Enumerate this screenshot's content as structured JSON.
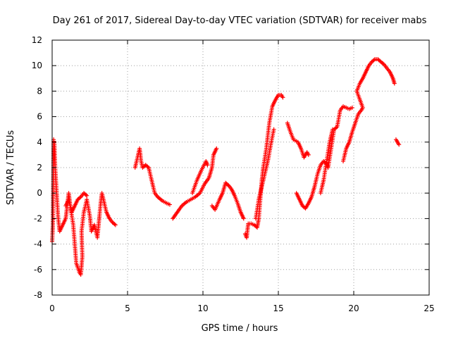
{
  "chart_data": {
    "type": "scatter",
    "title": "Day 261 of 2017, Sidereal Day-to-day VTEC variation (SDTVAR) for receiver mabs",
    "xlabel": "GPS time / hours",
    "ylabel": "SDTVAR / TECUs",
    "xlim": [
      0,
      25
    ],
    "ylim": [
      -8,
      12
    ],
    "xticks": [
      0,
      5,
      10,
      15,
      20,
      25
    ],
    "yticks": [
      -8,
      -6,
      -4,
      -2,
      0,
      2,
      4,
      6,
      8,
      10,
      12
    ],
    "x_tick_labels": [
      "0",
      "5",
      "10",
      "15",
      "20",
      "25"
    ],
    "y_tick_labels": [
      "-8",
      "-6",
      "-4",
      "-2",
      "0",
      "2",
      "4",
      "6",
      "8",
      "10",
      "12"
    ],
    "grid": true,
    "marker": "+",
    "series": [
      {
        "name": "SDTVAR",
        "color": "#ff0000",
        "segments": [
          [
            [
              0.0,
              -3.8
            ],
            [
              0.05,
              -2.5
            ],
            [
              0.1,
              4.2
            ],
            [
              0.15,
              3.8
            ],
            [
              0.2,
              2.0
            ],
            [
              0.3,
              0.0
            ],
            [
              0.4,
              -2.0
            ],
            [
              0.5,
              -3.0
            ],
            [
              0.7,
              -2.5
            ],
            [
              0.9,
              -2.0
            ],
            [
              1.0,
              -1.0
            ],
            [
              1.1,
              0.0
            ],
            [
              1.2,
              -1.0
            ],
            [
              1.4,
              -2.5
            ],
            [
              1.5,
              -4.0
            ],
            [
              1.6,
              -5.5
            ],
            [
              1.8,
              -6.2
            ],
            [
              1.9,
              -6.4
            ],
            [
              2.0,
              -5.0
            ],
            [
              1.95,
              -3.0
            ],
            [
              2.1,
              -1.5
            ],
            [
              2.3,
              -0.5
            ],
            [
              2.5,
              -1.8
            ],
            [
              2.6,
              -3.0
            ],
            [
              2.8,
              -2.5
            ],
            [
              3.0,
              -3.5
            ],
            [
              3.2,
              -1.0
            ],
            [
              3.3,
              0.0
            ],
            [
              3.4,
              -0.5
            ],
            [
              3.6,
              -1.5
            ],
            [
              3.8,
              -2.0
            ],
            [
              4.0,
              -2.3
            ],
            [
              4.2,
              -2.5
            ]
          ],
          [
            [
              0.9,
              -1.0
            ],
            [
              1.1,
              -0.5
            ],
            [
              1.3,
              -1.5
            ],
            [
              1.5,
              -1.0
            ],
            [
              1.7,
              -0.5
            ],
            [
              1.9,
              -0.3
            ],
            [
              2.1,
              0.0
            ],
            [
              2.3,
              -0.2
            ]
          ],
          [
            [
              5.5,
              2.0
            ],
            [
              5.6,
              2.5
            ],
            [
              5.8,
              3.5
            ],
            [
              5.9,
              2.5
            ],
            [
              6.0,
              2.0
            ],
            [
              6.2,
              2.2
            ],
            [
              6.4,
              2.0
            ],
            [
              6.6,
              1.0
            ],
            [
              6.8,
              0.0
            ],
            [
              7.0,
              -0.3
            ],
            [
              7.3,
              -0.6
            ],
            [
              7.6,
              -0.8
            ],
            [
              7.8,
              -0.9
            ]
          ],
          [
            [
              8.0,
              -2.0
            ],
            [
              8.3,
              -1.5
            ],
            [
              8.6,
              -1.0
            ],
            [
              8.9,
              -0.7
            ],
            [
              9.2,
              -0.5
            ],
            [
              9.5,
              -0.3
            ],
            [
              9.8,
              0.0
            ],
            [
              10.1,
              0.7
            ],
            [
              10.4,
              1.2
            ],
            [
              10.6,
              2.0
            ],
            [
              10.7,
              3.0
            ],
            [
              10.9,
              3.5
            ]
          ],
          [
            [
              9.3,
              0.0
            ],
            [
              9.6,
              1.0
            ],
            [
              9.9,
              1.8
            ],
            [
              10.2,
              2.5
            ],
            [
              10.3,
              2.2
            ]
          ],
          [
            [
              10.6,
              -1.0
            ],
            [
              10.8,
              -1.3
            ],
            [
              11.1,
              -0.5
            ],
            [
              11.3,
              0.0
            ],
            [
              11.5,
              0.8
            ],
            [
              11.7,
              0.6
            ],
            [
              11.9,
              0.3
            ],
            [
              12.1,
              -0.2
            ],
            [
              12.3,
              -0.8
            ],
            [
              12.5,
              -1.5
            ],
            [
              12.7,
              -2.0
            ]
          ],
          [
            [
              12.8,
              -3.2
            ],
            [
              12.9,
              -3.5
            ],
            [
              13.0,
              -2.4
            ],
            [
              13.2,
              -2.4
            ],
            [
              13.4,
              -2.5
            ],
            [
              13.6,
              -2.7
            ],
            [
              13.7,
              -2.0
            ],
            [
              13.8,
              -0.5
            ],
            [
              13.9,
              1.0
            ],
            [
              14.0,
              2.0
            ],
            [
              14.2,
              3.5
            ],
            [
              14.4,
              5.5
            ],
            [
              14.6,
              6.8
            ],
            [
              14.8,
              7.3
            ],
            [
              15.0,
              7.7
            ],
            [
              15.2,
              7.7
            ],
            [
              15.3,
              7.5
            ]
          ],
          [
            [
              13.5,
              -2.0
            ],
            [
              13.7,
              -0.5
            ],
            [
              13.9,
              0.5
            ],
            [
              14.1,
              1.5
            ],
            [
              14.3,
              2.5
            ],
            [
              14.5,
              3.8
            ],
            [
              14.7,
              5.0
            ]
          ],
          [
            [
              15.6,
              5.5
            ],
            [
              15.8,
              4.8
            ],
            [
              16.0,
              4.2
            ],
            [
              16.3,
              4.0
            ],
            [
              16.5,
              3.5
            ],
            [
              16.7,
              2.8
            ],
            [
              16.9,
              3.2
            ],
            [
              17.0,
              3.0
            ]
          ],
          [
            [
              16.2,
              0.0
            ],
            [
              16.4,
              -0.5
            ],
            [
              16.6,
              -1.0
            ],
            [
              16.8,
              -1.2
            ],
            [
              17.0,
              -0.8
            ],
            [
              17.2,
              -0.3
            ],
            [
              17.4,
              0.5
            ],
            [
              17.6,
              1.5
            ],
            [
              17.8,
              2.2
            ],
            [
              18.0,
              2.5
            ],
            [
              18.2,
              2.3
            ],
            [
              18.3,
              2.0
            ],
            [
              18.5,
              3.5
            ],
            [
              18.7,
              5.0
            ],
            [
              18.9,
              5.2
            ],
            [
              19.1,
              6.5
            ],
            [
              19.3,
              6.8
            ],
            [
              19.5,
              6.7
            ],
            [
              19.7,
              6.6
            ],
            [
              19.9,
              6.7
            ]
          ],
          [
            [
              17.8,
              0.0
            ],
            [
              18.0,
              1.0
            ],
            [
              18.2,
              2.5
            ],
            [
              18.4,
              4.0
            ],
            [
              18.6,
              5.0
            ]
          ],
          [
            [
              19.3,
              2.5
            ],
            [
              19.5,
              3.5
            ],
            [
              19.7,
              4.0
            ],
            [
              19.9,
              4.8
            ],
            [
              20.1,
              5.5
            ],
            [
              20.3,
              6.2
            ],
            [
              20.5,
              6.5
            ],
            [
              20.6,
              6.7
            ],
            [
              20.2,
              8.0
            ],
            [
              20.4,
              8.6
            ],
            [
              20.6,
              9.0
            ],
            [
              20.8,
              9.5
            ],
            [
              21.0,
              10.0
            ],
            [
              21.2,
              10.3
            ],
            [
              21.4,
              10.5
            ],
            [
              21.6,
              10.5
            ],
            [
              21.8,
              10.3
            ],
            [
              22.0,
              10.1
            ],
            [
              22.2,
              9.8
            ],
            [
              22.4,
              9.5
            ],
            [
              22.6,
              9.0
            ],
            [
              22.7,
              8.6
            ]
          ],
          [
            [
              22.8,
              4.2
            ],
            [
              22.9,
              4.0
            ],
            [
              23.0,
              3.8
            ]
          ]
        ]
      }
    ]
  }
}
